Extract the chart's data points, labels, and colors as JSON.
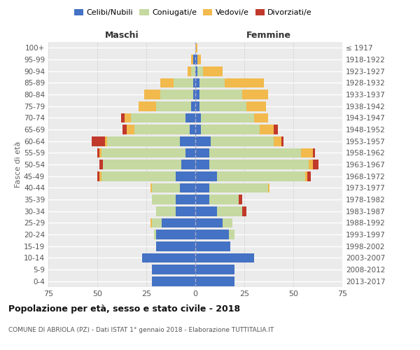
{
  "age_groups": [
    "0-4",
    "5-9",
    "10-14",
    "15-19",
    "20-24",
    "25-29",
    "30-34",
    "35-39",
    "40-44",
    "45-49",
    "50-54",
    "55-59",
    "60-64",
    "65-69",
    "70-74",
    "75-79",
    "80-84",
    "85-89",
    "90-94",
    "95-99",
    "100+"
  ],
  "birth_years": [
    "2013-2017",
    "2008-2012",
    "2003-2007",
    "1998-2002",
    "1993-1997",
    "1988-1992",
    "1983-1987",
    "1978-1982",
    "1973-1977",
    "1968-1972",
    "1963-1967",
    "1958-1962",
    "1953-1957",
    "1948-1952",
    "1943-1947",
    "1938-1942",
    "1933-1937",
    "1928-1932",
    "1923-1927",
    "1918-1922",
    "≤ 1917"
  ],
  "colors": {
    "celibi": "#4472C4",
    "coniugati": "#c5d9a0",
    "vedovi": "#f2b94c",
    "divorziati": "#c0392b"
  },
  "male": {
    "celibi": [
      22,
      22,
      27,
      20,
      20,
      17,
      10,
      10,
      8,
      10,
      7,
      5,
      8,
      3,
      5,
      2,
      1,
      1,
      0,
      1,
      0
    ],
    "coniugati": [
      0,
      0,
      0,
      0,
      1,
      5,
      10,
      12,
      14,
      38,
      40,
      43,
      37,
      28,
      28,
      18,
      17,
      10,
      2,
      0,
      0
    ],
    "vedovi": [
      0,
      0,
      0,
      0,
      0,
      1,
      0,
      0,
      1,
      1,
      0,
      1,
      1,
      4,
      3,
      9,
      8,
      7,
      2,
      1,
      0
    ],
    "divorziati": [
      0,
      0,
      0,
      0,
      0,
      0,
      0,
      0,
      0,
      1,
      2,
      1,
      7,
      2,
      2,
      0,
      0,
      0,
      0,
      0,
      0
    ]
  },
  "female": {
    "celibi": [
      20,
      20,
      30,
      18,
      17,
      14,
      11,
      7,
      7,
      11,
      7,
      7,
      8,
      3,
      3,
      2,
      2,
      2,
      1,
      1,
      0
    ],
    "coniugati": [
      0,
      0,
      0,
      0,
      3,
      5,
      13,
      15,
      30,
      45,
      51,
      47,
      32,
      30,
      27,
      24,
      22,
      13,
      3,
      0,
      0
    ],
    "vedovi": [
      0,
      0,
      0,
      0,
      0,
      0,
      0,
      0,
      1,
      1,
      2,
      6,
      4,
      7,
      7,
      10,
      13,
      20,
      10,
      2,
      1
    ],
    "divorziati": [
      0,
      0,
      0,
      0,
      0,
      0,
      2,
      2,
      0,
      2,
      3,
      1,
      1,
      2,
      0,
      0,
      0,
      0,
      0,
      0,
      0
    ]
  },
  "xlim": 75,
  "title": "Popolazione per età, sesso e stato civile - 2018",
  "subtitle": "COMUNE DI ABRIOLA (PZ) - Dati ISTAT 1° gennaio 2018 - Elaborazione TUTTITALIA.IT",
  "ylabel_left": "Fasce di età",
  "label_maschi": "Maschi",
  "label_femmine": "Femmine",
  "legend_labels": [
    "Celibi/Nubili",
    "Coniugati/e",
    "Vedovi/e",
    "Divorziati/e"
  ],
  "bg_color": "#ebebeb"
}
